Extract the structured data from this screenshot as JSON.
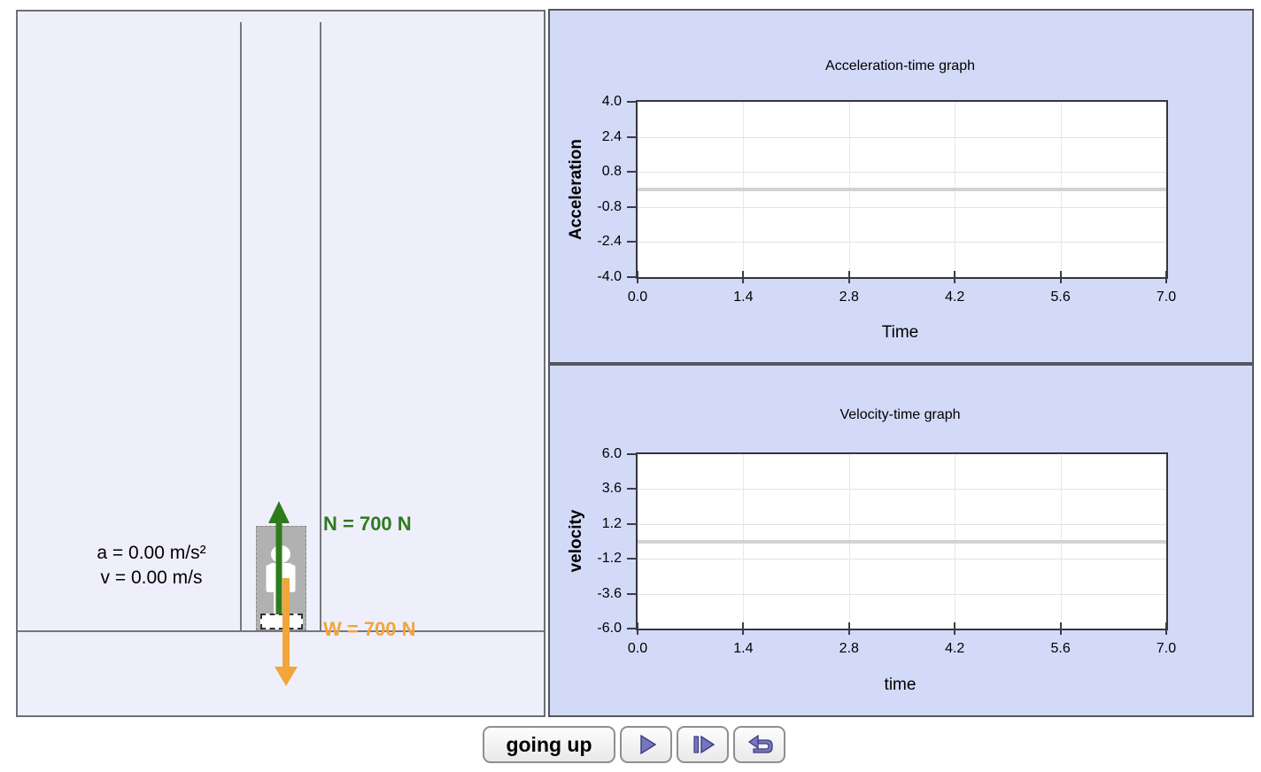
{
  "sim": {
    "acceleration_readout": "a = 0.00 m/s²",
    "velocity_readout": "v = 0.00 m/s",
    "normal_force_label": "N = 700 N",
    "weight_label": "W = 700 N",
    "colors": {
      "normal": "#2e7b1d",
      "weight": "#f2a53a"
    }
  },
  "chart_data": [
    {
      "type": "line",
      "title": "Acceleration-time graph",
      "xlabel": "Time",
      "ylabel": "Acceleration",
      "xlim": [
        0.0,
        7.0
      ],
      "ylim": [
        -4.0,
        4.0
      ],
      "x_ticks": [
        "0.0",
        "1.4",
        "2.8",
        "4.2",
        "5.6",
        "7.0"
      ],
      "y_ticks": [
        "4.0",
        "2.4",
        "0.8",
        "-0.8",
        "-2.4",
        "-4.0"
      ],
      "grid": true,
      "legend": "none",
      "series": [
        {
          "name": "acceleration",
          "x": [
            0.0,
            7.0
          ],
          "values": [
            0.0,
            0.0
          ],
          "color": "#d2d2d2"
        }
      ]
    },
    {
      "type": "line",
      "title": "Velocity-time graph",
      "xlabel": "time",
      "ylabel": "velocity",
      "xlim": [
        0.0,
        7.0
      ],
      "ylim": [
        -6.0,
        6.0
      ],
      "x_ticks": [
        "0.0",
        "1.4",
        "2.8",
        "4.2",
        "5.6",
        "7.0"
      ],
      "y_ticks": [
        "6.0",
        "3.6",
        "1.2",
        "-1.2",
        "-3.6",
        "-6.0"
      ],
      "grid": true,
      "legend": "none",
      "series": [
        {
          "name": "velocity",
          "x": [
            0.0,
            7.0
          ],
          "values": [
            0.0,
            0.0
          ],
          "color": "#d2d2d2"
        }
      ]
    }
  ],
  "controls": {
    "mode_button_label": "going up",
    "play_button": "play",
    "step_button": "step forward",
    "undo_button": "reset"
  }
}
